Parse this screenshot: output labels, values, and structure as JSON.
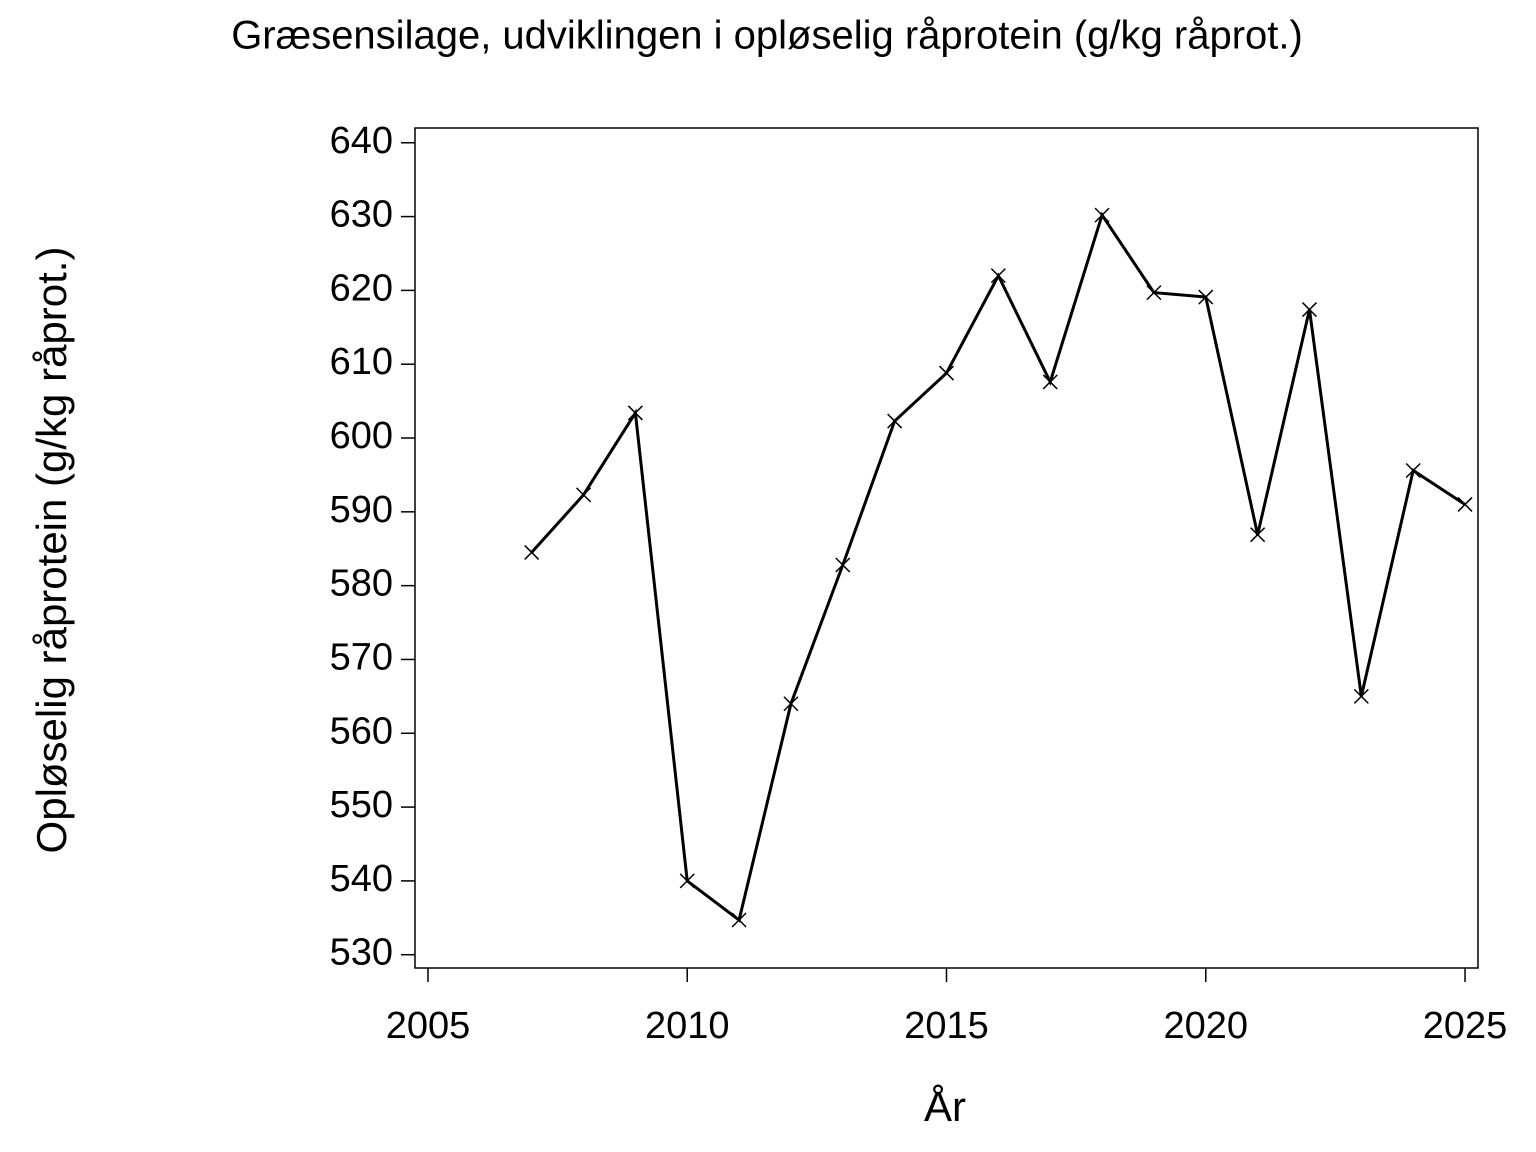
{
  "chart_data": {
    "type": "line",
    "title": "Græsensilage,  udviklingen  i  opløselig  råprotein  (g/kg  råprot.)",
    "x_label": "År",
    "y_label": "Opløselig  råprotein  (g/kg  råprot.)",
    "x": [
      2007,
      2008,
      2009,
      2010,
      2011,
      2012,
      2013,
      2014,
      2015,
      2016,
      2017,
      2018,
      2019,
      2020,
      2021,
      2022,
      2023,
      2024,
      2025
    ],
    "series": [
      {
        "color": "#000000",
        "marker": "x",
        "values": [
          584.5,
          592.3,
          603.4,
          540.0,
          534.7,
          564.0,
          582.8,
          602.3,
          608.8,
          622.0,
          607.6,
          630.2,
          619.7,
          619.1,
          586.9,
          617.4,
          565.0,
          595.6,
          591.0
        ]
      }
    ],
    "xlim": [
      2004.75,
      2025.25
    ],
    "xticks": [
      2005,
      2010,
      2015,
      2020,
      2025
    ],
    "ylim": [
      528.2,
      642.0
    ],
    "yticks": [
      530,
      540,
      550,
      560,
      570,
      580,
      590,
      600,
      610,
      620,
      630,
      640
    ],
    "grid": false
  }
}
